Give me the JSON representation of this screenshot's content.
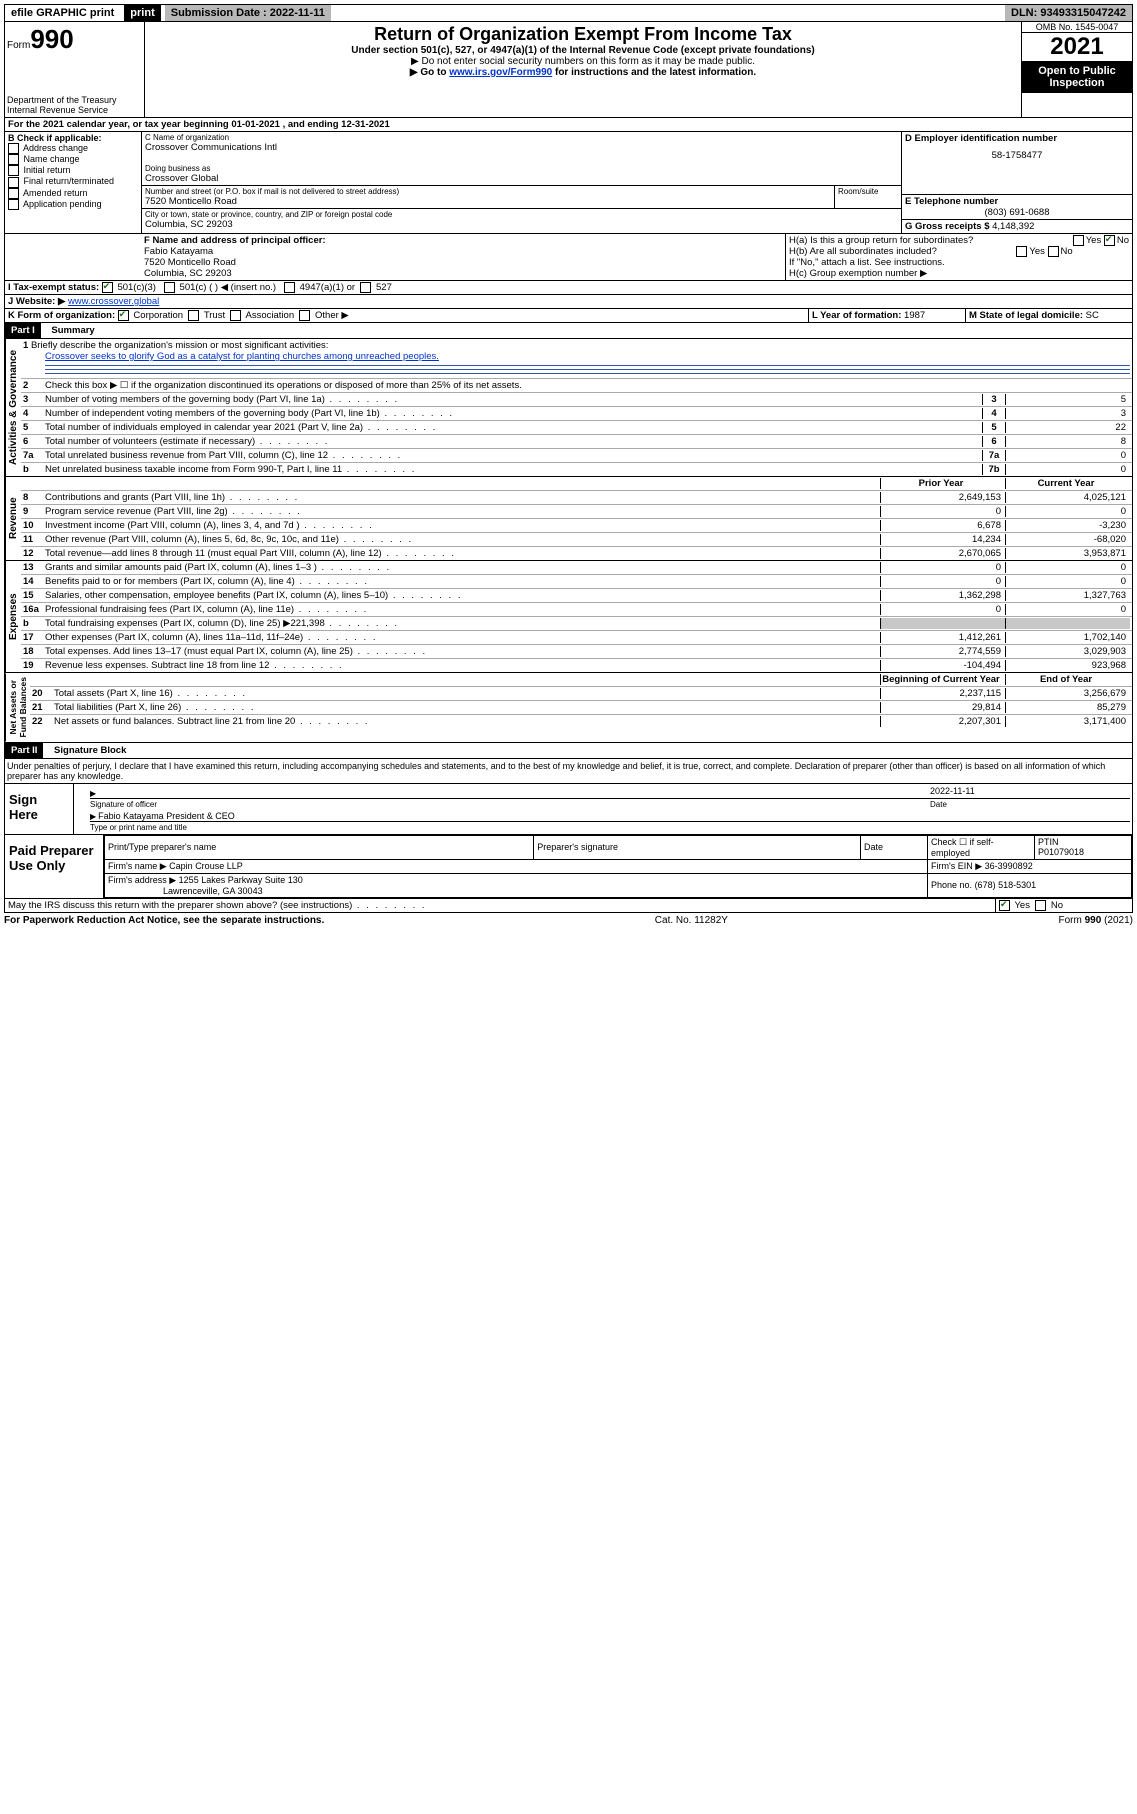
{
  "topbar": {
    "efile": "efile GRAPHIC print",
    "submission_label": "Submission Date : 2022-11-11",
    "dln": "DLN: 93493315047242"
  },
  "header": {
    "form_prefix": "Form",
    "form_number": "990",
    "dept": "Department of the Treasury\nInternal Revenue Service",
    "title": "Return of Organization Exempt From Income Tax",
    "subtitle": "Under section 501(c), 527, or 4947(a)(1) of the Internal Revenue Code (except private foundations)",
    "note1": "▶ Do not enter social security numbers on this form as it may be made public.",
    "note2_pre": "▶ Go to ",
    "note2_link": "www.irs.gov/Form990",
    "note2_post": " for instructions and the latest information.",
    "omb": "OMB No. 1545-0047",
    "year": "2021",
    "open": "Open to Public Inspection"
  },
  "lineA": "For the 2021 calendar year, or tax year beginning 01-01-2021    , and ending 12-31-2021",
  "sectionB": {
    "label": "B Check if applicable:",
    "items": [
      "Address change",
      "Name change",
      "Initial return",
      "Final return/terminated",
      "Amended return",
      "Application pending"
    ]
  },
  "sectionC": {
    "name_label": "C Name of organization",
    "name": "Crossover Communications Intl",
    "dba_label": "Doing business as",
    "dba": "Crossover Global",
    "street_label": "Number and street (or P.O. box if mail is not delivered to street address)",
    "room_label": "Room/suite",
    "street": "7520 Monticello Road",
    "city_label": "City or town, state or province, country, and ZIP or foreign postal code",
    "city": "Columbia, SC  29203"
  },
  "sectionD": {
    "label": "D Employer identification number",
    "value": "58-1758477"
  },
  "sectionE": {
    "label": "E Telephone number",
    "value": "(803) 691-0688"
  },
  "sectionG": {
    "label": "G Gross receipts $",
    "value": "4,148,392"
  },
  "sectionF": {
    "label": "F Name and address of principal officer:",
    "line1": "Fabio Katayama",
    "line2": "7520 Monticello Road",
    "line3": "Columbia, SC  29203"
  },
  "sectionH": {
    "a": "H(a)  Is this a group return for subordinates?",
    "a_no": "No",
    "b": "H(b)  Are all subordinates included?",
    "b_note": "If \"No,\" attach a list. See instructions.",
    "c": "H(c)  Group exemption number ▶"
  },
  "sectionI": {
    "label": "I   Tax-exempt status:",
    "c501c3": "501(c)(3)",
    "c501c": "501(c) (  ) ◀ (insert no.)",
    "c4947": "4947(a)(1) or",
    "c527": "527"
  },
  "sectionJ": {
    "label": "J   Website: ▶",
    "value": "www.crossover.global"
  },
  "sectionK": {
    "label": "K Form of organization:",
    "corp": "Corporation",
    "trust": "Trust",
    "assoc": "Association",
    "other": "Other ▶"
  },
  "sectionL": {
    "label": "L Year of formation:",
    "value": "1987"
  },
  "sectionM": {
    "label": "M State of legal domicile:",
    "value": "SC"
  },
  "partI": {
    "label": "Part I",
    "title": "Summary"
  },
  "summary": {
    "line1_label": "Briefly describe the organization's mission or most significant activities:",
    "line1_text": "Crossover seeks to glorify God as a catalyst for planting churches among unreached peoples.",
    "line2": "Check this box ▶ ☐  if the organization discontinued its operations or disposed of more than 25% of its net assets.",
    "rows_numeric": [
      {
        "n": "3",
        "t": "Number of voting members of the governing body (Part VI, line 1a)",
        "box": "3",
        "v": "5"
      },
      {
        "n": "4",
        "t": "Number of independent voting members of the governing body (Part VI, line 1b)",
        "box": "4",
        "v": "3"
      },
      {
        "n": "5",
        "t": "Total number of individuals employed in calendar year 2021 (Part V, line 2a)",
        "box": "5",
        "v": "22"
      },
      {
        "n": "6",
        "t": "Total number of volunteers (estimate if necessary)",
        "box": "6",
        "v": "8"
      },
      {
        "n": "7a",
        "t": "Total unrelated business revenue from Part VIII, column (C), line 12",
        "box": "7a",
        "v": "0"
      },
      {
        "n": "b",
        "t": "Net unrelated business taxable income from Form 990-T, Part I, line 11",
        "box": "7b",
        "v": "0"
      }
    ],
    "prior_hdr": "Prior Year",
    "current_hdr": "Current Year",
    "revenue": [
      {
        "n": "8",
        "t": "Contributions and grants (Part VIII, line 1h)",
        "p": "2,649,153",
        "c": "4,025,121"
      },
      {
        "n": "9",
        "t": "Program service revenue (Part VIII, line 2g)",
        "p": "0",
        "c": "0"
      },
      {
        "n": "10",
        "t": "Investment income (Part VIII, column (A), lines 3, 4, and 7d )",
        "p": "6,678",
        "c": "-3,230"
      },
      {
        "n": "11",
        "t": "Other revenue (Part VIII, column (A), lines 5, 6d, 8c, 9c, 10c, and 11e)",
        "p": "14,234",
        "c": "-68,020"
      },
      {
        "n": "12",
        "t": "Total revenue—add lines 8 through 11 (must equal Part VIII, column (A), line 12)",
        "p": "2,670,065",
        "c": "3,953,871"
      }
    ],
    "expenses": [
      {
        "n": "13",
        "t": "Grants and similar amounts paid (Part IX, column (A), lines 1–3 )",
        "p": "0",
        "c": "0"
      },
      {
        "n": "14",
        "t": "Benefits paid to or for members (Part IX, column (A), line 4)",
        "p": "0",
        "c": "0"
      },
      {
        "n": "15",
        "t": "Salaries, other compensation, employee benefits (Part IX, column (A), lines 5–10)",
        "p": "1,362,298",
        "c": "1,327,763"
      },
      {
        "n": "16a",
        "t": "Professional fundraising fees (Part IX, column (A), line 11e)",
        "p": "0",
        "c": "0"
      },
      {
        "n": "b",
        "t": "Total fundraising expenses (Part IX, column (D), line 25) ▶221,398",
        "p": "",
        "c": "",
        "grey": true
      },
      {
        "n": "17",
        "t": "Other expenses (Part IX, column (A), lines 11a–11d, 11f–24e)",
        "p": "1,412,261",
        "c": "1,702,140"
      },
      {
        "n": "18",
        "t": "Total expenses. Add lines 13–17 (must equal Part IX, column (A), line 25)",
        "p": "2,774,559",
        "c": "3,029,903"
      },
      {
        "n": "19",
        "t": "Revenue less expenses. Subtract line 18 from line 12",
        "p": "-104,494",
        "c": "923,968"
      }
    ],
    "begin_hdr": "Beginning of Current Year",
    "end_hdr": "End of Year",
    "netassets": [
      {
        "n": "20",
        "t": "Total assets (Part X, line 16)",
        "p": "2,237,115",
        "c": "3,256,679"
      },
      {
        "n": "21",
        "t": "Total liabilities (Part X, line 26)",
        "p": "29,814",
        "c": "85,279"
      },
      {
        "n": "22",
        "t": "Net assets or fund balances. Subtract line 21 from line 20",
        "p": "2,207,301",
        "c": "3,171,400"
      }
    ]
  },
  "partII": {
    "label": "Part II",
    "title": "Signature Block"
  },
  "perjury": "Under penalties of perjury, I declare that I have examined this return, including accompanying schedules and statements, and to the best of my knowledge and belief, it is true, correct, and complete. Declaration of preparer (other than officer) is based on all information of which preparer has any knowledge.",
  "sign": {
    "label": "Sign Here",
    "sig_label": "Signature of officer",
    "date": "2022-11-11",
    "date_label": "Date",
    "name": "Fabio Katayama  President & CEO",
    "name_label": "Type or print name and title"
  },
  "preparer": {
    "label": "Paid Preparer Use Only",
    "h1": "Print/Type preparer's name",
    "h2": "Preparer's signature",
    "h3": "Date",
    "h4_pre": "Check ☐ if self-employed",
    "h5": "PTIN",
    "ptin": "P01079018",
    "firm_label": "Firm's name    ▶",
    "firm": "Capin Crouse LLP",
    "ein_label": "Firm's EIN ▶",
    "ein": "36-3990892",
    "addr_label": "Firm's address ▶",
    "addr1": "1255 Lakes Parkway Suite 130",
    "addr2": "Lawrenceville, GA  30043",
    "phone_label": "Phone no.",
    "phone": "(678) 518-5301"
  },
  "discuss": {
    "text": "May the IRS discuss this return with the preparer shown above? (see instructions)",
    "yes": "Yes",
    "no": "No"
  },
  "footer": {
    "left": "For Paperwork Reduction Act Notice, see the separate instructions.",
    "mid": "Cat. No. 11282Y",
    "right": "Form 990 (2021)"
  }
}
